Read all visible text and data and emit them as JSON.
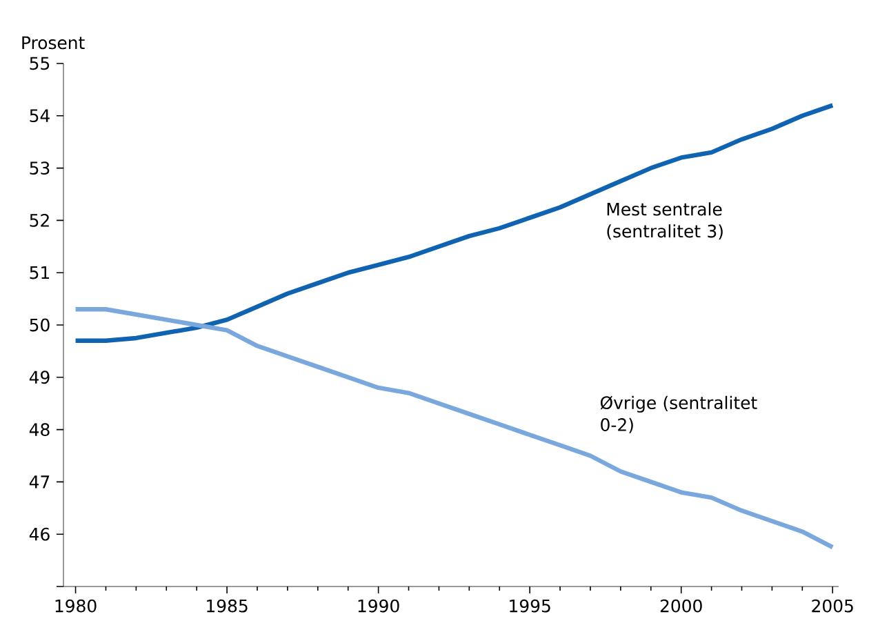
{
  "chart_data": {
    "type": "line",
    "ylabel": "Prosent",
    "x": [
      1980,
      1981,
      1982,
      1983,
      1984,
      1985,
      1986,
      1987,
      1988,
      1989,
      1990,
      1991,
      1992,
      1993,
      1994,
      1995,
      1996,
      1997,
      1998,
      1999,
      2000,
      2001,
      2002,
      2003,
      2004,
      2005
    ],
    "series": [
      {
        "name": "Mest sentrale (sentralitet 3)",
        "color": "#0f63b0",
        "values": [
          49.7,
          49.7,
          49.75,
          49.85,
          49.95,
          50.1,
          50.35,
          50.6,
          50.8,
          51.0,
          51.15,
          51.3,
          51.5,
          51.7,
          51.85,
          52.05,
          52.25,
          52.5,
          52.75,
          53.0,
          53.2,
          53.3,
          53.55,
          53.75,
          54.0,
          54.2
        ]
      },
      {
        "name": "Øvrige (sentralitet 0-2)",
        "color": "#7aa8dc",
        "values": [
          50.3,
          50.3,
          50.2,
          50.1,
          50.0,
          49.9,
          49.6,
          49.4,
          49.2,
          49.0,
          48.8,
          48.7,
          48.5,
          48.3,
          48.1,
          47.9,
          47.7,
          47.5,
          47.2,
          47.0,
          46.8,
          46.7,
          46.45,
          46.25,
          46.05,
          45.75
        ]
      }
    ],
    "xlim": [
      1979.6,
      2005.2
    ],
    "ylim": [
      45,
      55
    ],
    "xticks": [
      1980,
      1985,
      1990,
      1995,
      2000,
      2005
    ],
    "yticks": [
      {
        "value": 45,
        "label": null
      },
      46,
      47,
      48,
      49,
      50,
      51,
      52,
      53,
      54,
      55
    ],
    "grid": false,
    "legend": false,
    "marker": "none",
    "line_style": "solid"
  }
}
